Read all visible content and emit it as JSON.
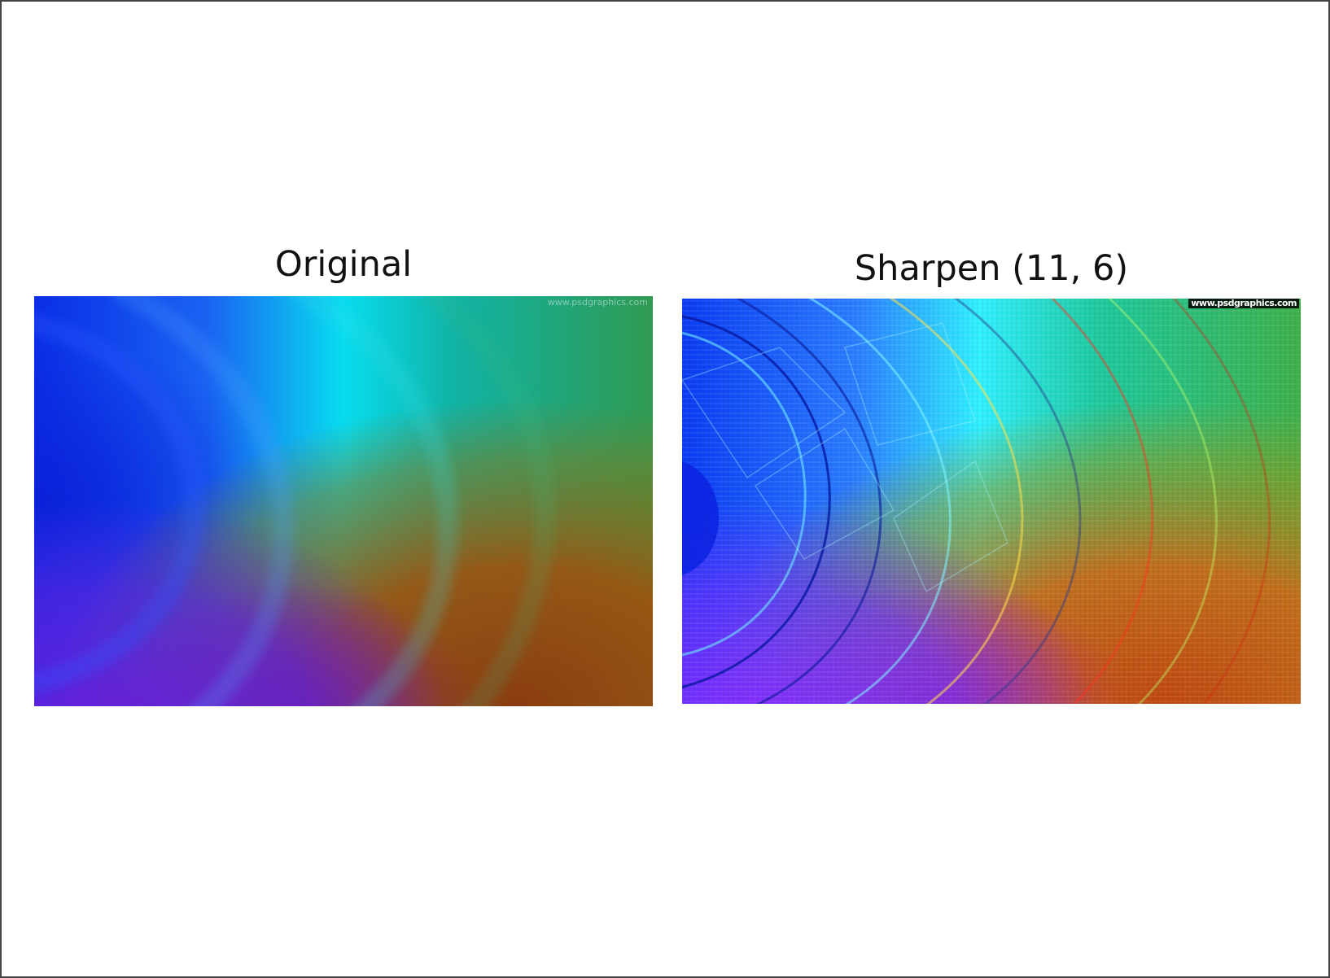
{
  "figure": {
    "panels": [
      {
        "title": "Original",
        "watermark": "www.psdgraphics.com"
      },
      {
        "title": "Sharpen (11, 6)",
        "watermark": "www.psdgraphics.com"
      }
    ]
  },
  "colors": {
    "blue": "#0a2ee6",
    "cyan": "#08dcef",
    "teal": "#11b3a5",
    "green": "#2f9a52",
    "olive": "#7d7a22",
    "orange": "#9b5410",
    "purple": "#6a1fd8",
    "magenta": "#8a1e6e",
    "brown": "#8a3c10"
  }
}
